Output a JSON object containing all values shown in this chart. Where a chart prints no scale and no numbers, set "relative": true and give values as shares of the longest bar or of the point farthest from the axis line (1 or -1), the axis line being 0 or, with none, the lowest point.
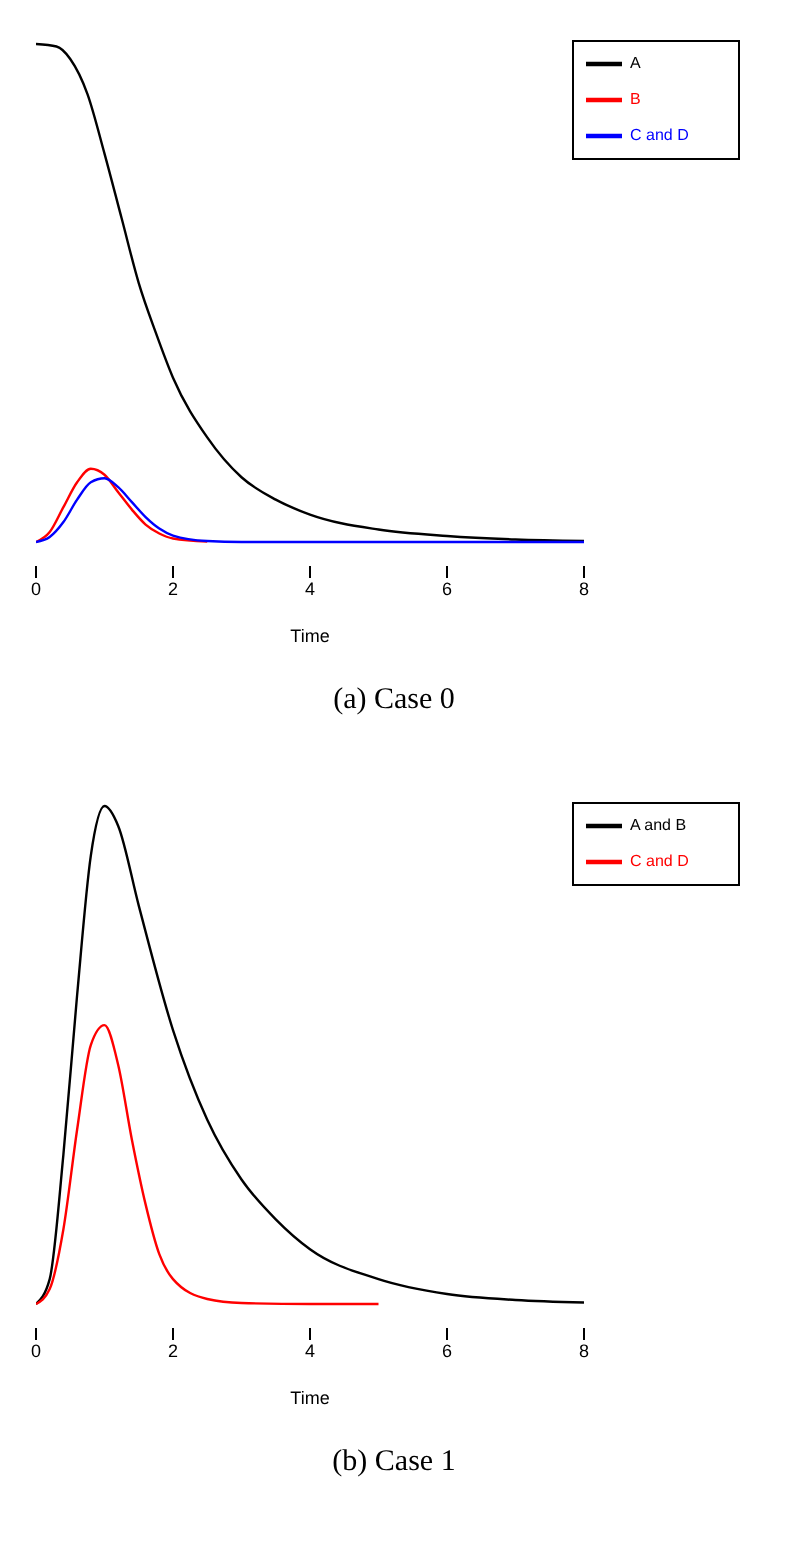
{
  "chart_data": [
    {
      "type": "line",
      "relative": true,
      "xlabel": "Time",
      "xlim": [
        0,
        8
      ],
      "xticks": [
        0,
        2,
        4,
        6,
        8
      ],
      "legend": "top right",
      "annotations": [
        "(a) Case 0"
      ],
      "series": [
        {
          "name": "A",
          "color": "#000000",
          "x": [
            0,
            0.3,
            0.5,
            0.75,
            1,
            1.25,
            1.5,
            1.75,
            2,
            2.5,
            3,
            3.5,
            4,
            5,
            6,
            7,
            8
          ],
          "values": [
            1,
            0.995,
            0.97,
            0.9,
            0.78,
            0.65,
            0.52,
            0.42,
            0.33,
            0.21,
            0.13,
            0.085,
            0.055,
            0.025,
            0.012,
            0.005,
            0.002
          ]
        },
        {
          "name": "B",
          "color": "#ff0000",
          "x": [
            0,
            0.2,
            0.4,
            0.6,
            0.8,
            1,
            1.2,
            1.4,
            1.6,
            1.8,
            2,
            2.5
          ],
          "values": [
            0,
            0.02,
            0.07,
            0.12,
            0.147,
            0.135,
            0.1,
            0.065,
            0.035,
            0.017,
            0.007,
            0.001
          ]
        },
        {
          "name": "C and D",
          "color": "#0000ff",
          "x": [
            0,
            0.2,
            0.4,
            0.6,
            0.8,
            1,
            1.2,
            1.4,
            1.6,
            1.8,
            2,
            2.5,
            3,
            4,
            5,
            6,
            7,
            8
          ],
          "values": [
            0,
            0.01,
            0.04,
            0.085,
            0.12,
            0.128,
            0.11,
            0.08,
            0.05,
            0.027,
            0.013,
            0.002,
            0,
            0,
            0,
            0,
            0,
            0
          ]
        }
      ]
    },
    {
      "type": "line",
      "relative": true,
      "xlabel": "Time",
      "xlim": [
        0,
        8
      ],
      "xticks": [
        0,
        2,
        4,
        6,
        8
      ],
      "legend": "top right",
      "annotations": [
        "(b) Case 1"
      ],
      "series": [
        {
          "name": "A and B",
          "color": "#000000",
          "x": [
            0,
            0.2,
            0.4,
            0.6,
            0.8,
            1,
            1.2,
            1.5,
            2,
            2.5,
            3,
            3.5,
            4,
            5,
            6,
            7,
            8
          ],
          "values": [
            0,
            0.05,
            0.3,
            0.62,
            0.9,
            1,
            0.96,
            0.8,
            0.55,
            0.37,
            0.25,
            0.17,
            0.11,
            0.05,
            0.02,
            0.008,
            0.003
          ]
        },
        {
          "name": "C and D",
          "color": "#ff0000",
          "x": [
            0,
            0.2,
            0.4,
            0.6,
            0.8,
            1,
            1.2,
            1.4,
            1.6,
            1.8,
            2,
            2.5,
            3,
            4,
            5
          ],
          "values": [
            0,
            0.03,
            0.15,
            0.35,
            0.52,
            0.56,
            0.48,
            0.33,
            0.2,
            0.1,
            0.05,
            0.01,
            0.002,
            0,
            0
          ]
        }
      ]
    }
  ]
}
